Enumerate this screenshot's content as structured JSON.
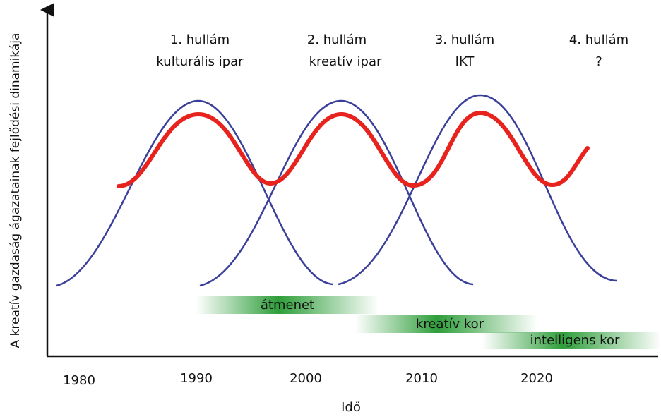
{
  "y_axis_label": "A kreatív gazdaság ágazatainak fejlődési dinamikája",
  "x_axis_label": "Idő",
  "years": [
    "1980",
    "1990",
    "2000",
    "2010",
    "2020"
  ],
  "waves": [
    {
      "title": "1. hullám",
      "subtitle": "kulturális ipar"
    },
    {
      "title": "2. hullám",
      "subtitle": "kreatív ipar"
    },
    {
      "title": "3. hullám",
      "subtitle": "IKT"
    },
    {
      "title": "4. hullám",
      "subtitle": "?"
    }
  ],
  "eras": [
    "átmenet",
    "kreatív kor",
    "intelligens kor"
  ]
}
